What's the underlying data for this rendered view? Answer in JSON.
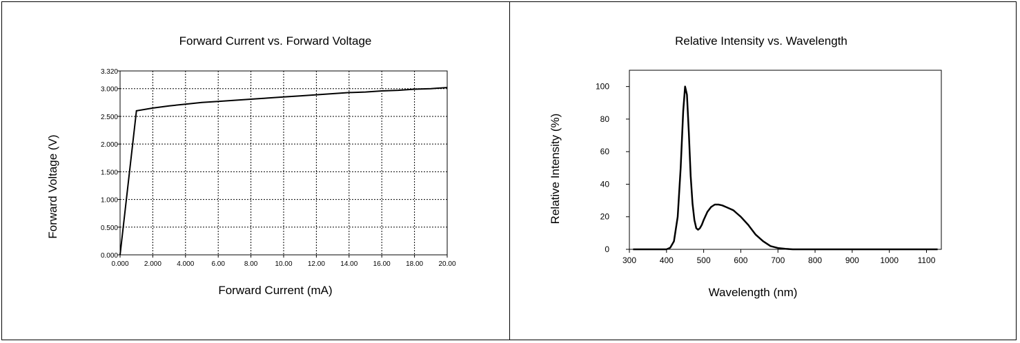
{
  "chart_data": [
    {
      "type": "line",
      "title": "Forward Current vs. Forward Voltage",
      "xlabel": "Forward Current (mA)",
      "ylabel": "Forward Voltage (V)",
      "xlim": [
        0,
        20
      ],
      "ylim": [
        0,
        3.32
      ],
      "grid": true,
      "grid_style": "dotted",
      "x_ticks": [
        0,
        2,
        4,
        6,
        8,
        10,
        12,
        14,
        16,
        18,
        20
      ],
      "x_tick_labels": [
        "0.000",
        "2.000",
        "4.000",
        "6.00",
        "8.00",
        "10.00",
        "12.00",
        "14.00",
        "16.00",
        "18.00",
        "20.00"
      ],
      "y_ticks": [
        0,
        0.5,
        1,
        1.5,
        2,
        2.5,
        3,
        3.32
      ],
      "y_tick_labels": [
        "0.000",
        "0.500",
        "1.000",
        "1.500",
        "2.000",
        "2.500",
        "3.000",
        "3.320"
      ],
      "series": [
        {
          "color": "#000000",
          "x": [
            0,
            1.0,
            2,
            3,
            4,
            5,
            6,
            7,
            8,
            9,
            10,
            11,
            12,
            13,
            14,
            15,
            16,
            17,
            18,
            19,
            20
          ],
          "y": [
            0,
            2.6,
            2.65,
            2.69,
            2.72,
            2.75,
            2.77,
            2.79,
            2.81,
            2.83,
            2.85,
            2.87,
            2.89,
            2.91,
            2.93,
            2.94,
            2.96,
            2.97,
            2.99,
            3.0,
            3.02
          ]
        }
      ]
    },
    {
      "type": "line",
      "title": "Relative Intensity vs. Wavelength",
      "xlabel": "Wavelength (nm)",
      "ylabel": "Relative Intensity (%)",
      "xlim": [
        300,
        1140
      ],
      "ylim": [
        0,
        110
      ],
      "grid": false,
      "x_ticks": [
        300,
        400,
        500,
        600,
        700,
        800,
        900,
        1000,
        1100
      ],
      "x_tick_labels": [
        "300",
        "400",
        "500",
        "600",
        "700",
        "800",
        "900",
        "1000",
        "1100"
      ],
      "y_ticks": [
        0,
        20,
        40,
        60,
        80,
        100
      ],
      "y_tick_labels": [
        "0",
        "20",
        "40",
        "60",
        "80",
        "100"
      ],
      "series": [
        {
          "color": "#000000",
          "x": [
            310,
            400,
            410,
            420,
            430,
            438,
            445,
            450,
            455,
            460,
            465,
            470,
            475,
            480,
            485,
            490,
            495,
            500,
            510,
            520,
            530,
            540,
            550,
            560,
            570,
            580,
            590,
            600,
            620,
            640,
            660,
            680,
            700,
            720,
            740,
            800,
            900,
            1000,
            1100,
            1130
          ],
          "y": [
            0,
            0,
            1,
            5,
            20,
            50,
            85,
            100,
            95,
            72,
            45,
            28,
            18,
            13,
            12,
            13,
            15,
            18,
            23,
            26,
            27.5,
            27.5,
            27,
            26,
            25,
            24,
            22,
            20,
            15,
            9,
            5,
            2,
            0.8,
            0.3,
            0,
            0,
            0,
            0,
            0,
            0
          ]
        }
      ]
    }
  ]
}
